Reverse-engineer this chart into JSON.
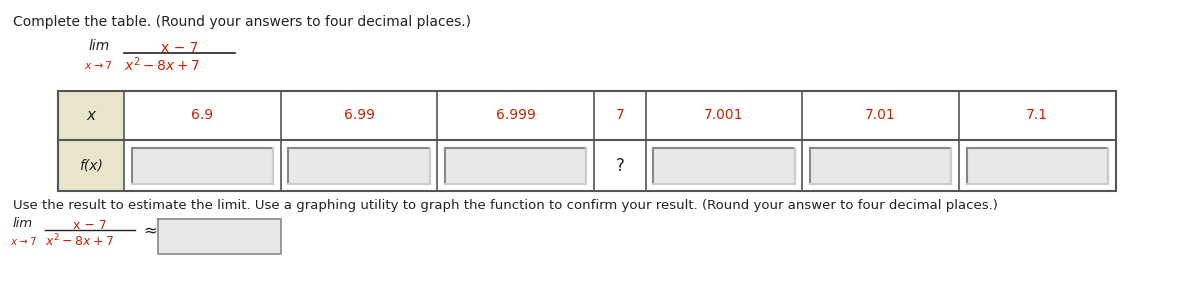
{
  "title": "Complete the table. (Round your answers to four decimal places.)",
  "x_values": [
    "6.9",
    "6.99",
    "6.999",
    "7",
    "7.001",
    "7.01",
    "7.1"
  ],
  "x_label": "x",
  "fx_label": "f(x)",
  "question_mark": "?",
  "question_mark_index": 3,
  "footer_text": "Use the result to estimate the limit. Use a graphing utility to graph the function to confirm your result. (Round your answer to four decimal places.)",
  "approx_symbol": "≈",
  "bg_color": "#ffffff",
  "header_bg": "#e8e5cc",
  "table_border": "#555555",
  "red_color": "#cc2200",
  "text_color": "#222222",
  "box_fill_top": "#d0d0d0",
  "box_fill_bot": "#e8e8e8",
  "box_border_dark": "#888888",
  "box_border_light": "#cccccc"
}
